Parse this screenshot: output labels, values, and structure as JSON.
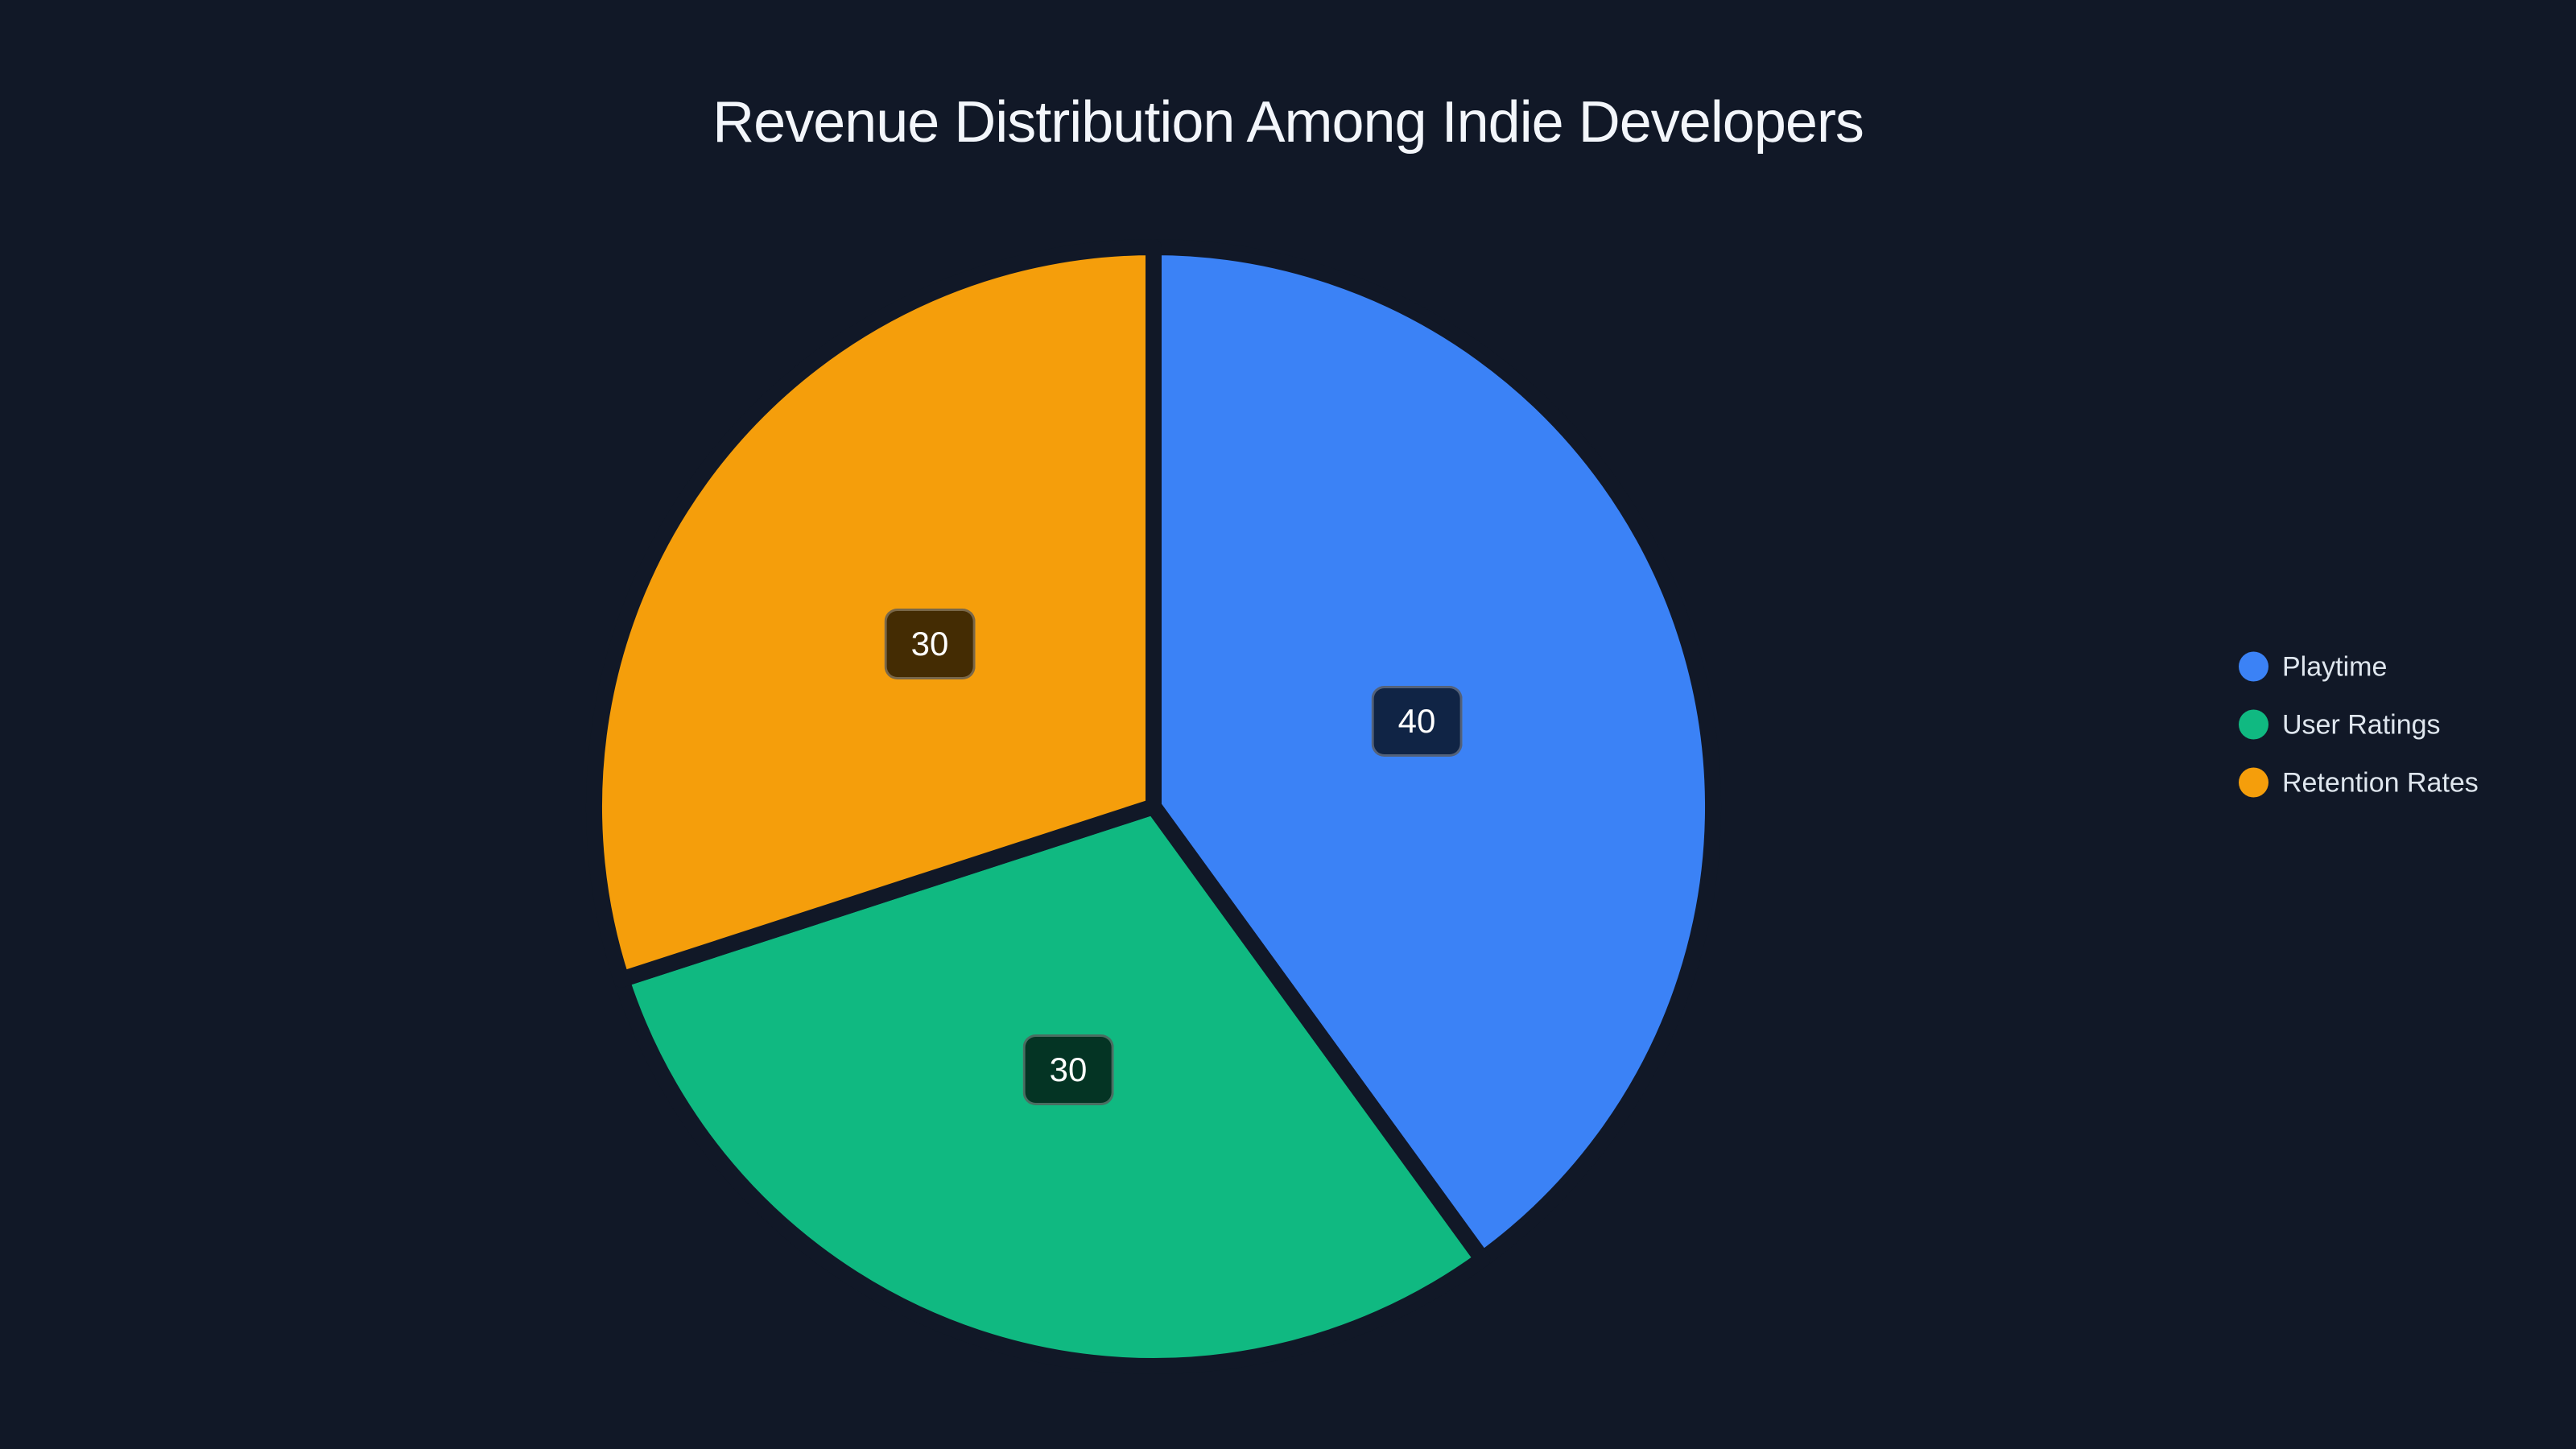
{
  "page": {
    "background_color": "#111827"
  },
  "chart_data": {
    "type": "pie",
    "title": "Revenue Distribution Among Indie Developers",
    "categories": [
      "Playtime",
      "User Ratings",
      "Retention Rates"
    ],
    "values": [
      40,
      30,
      30
    ],
    "series": [
      {
        "label": "Playtime",
        "value": 40,
        "color": "#3b82f6"
      },
      {
        "label": "User Ratings",
        "value": 30,
        "color": "#10b981"
      },
      {
        "label": "Retention Rates",
        "value": 30,
        "color": "#f59e0b"
      }
    ],
    "start_angle_deg": 90,
    "direction": "clockwise",
    "slice_gap_color": "#111827",
    "legend_position": "right-middle",
    "title_color": "#f3f6fb",
    "legend_text_color": "#dfe6ee",
    "value_label_background": "rgba(0,0,0,0.72)",
    "value_label_text_color": "#ffffff"
  }
}
